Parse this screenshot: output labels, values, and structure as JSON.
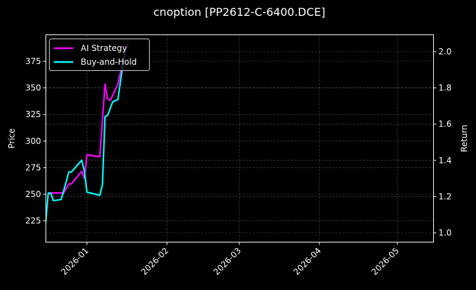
{
  "chart_data": {
    "type": "line",
    "title": "cnoption [PP2612-C-6400.DCE]",
    "xlabel": "",
    "ylabel": "Price",
    "y2label": "Return",
    "x_ticks": [
      "2026-01",
      "2026-02",
      "2026-03",
      "2026-04",
      "2026-05"
    ],
    "y_ticks": [
      225,
      250,
      275,
      300,
      325,
      350,
      375
    ],
    "y2_ticks": [
      1.0,
      1.2,
      1.4,
      1.6,
      1.8,
      2.0
    ],
    "ylim": [
      206,
      401
    ],
    "y2lim": [
      0.95,
      2.1
    ],
    "grid": true,
    "legend_position": "upper left",
    "series": [
      {
        "name": "AI Strategy",
        "color": "#ff00ff",
        "axis": "Return",
        "x": [
          "2025-12-17",
          "2025-12-23",
          "2025-12-25",
          "2025-12-26",
          "2025-12-30",
          "2025-12-31",
          "2026-01-01",
          "2026-01-06",
          "2026-01-08",
          "2026-01-09",
          "2026-01-10",
          "2026-01-13",
          "2026-01-15",
          "2026-01-17"
        ],
        "values": [
          1.22,
          1.22,
          1.27,
          1.27,
          1.34,
          1.3,
          1.43,
          1.42,
          1.82,
          1.74,
          1.73,
          1.82,
          1.95,
          2.05
        ]
      },
      {
        "name": "Buy-and-Hold",
        "color": "#00ffff",
        "axis": "Price",
        "x": [
          "2025-12-16",
          "2025-12-17",
          "2025-12-18",
          "2025-12-19",
          "2025-12-22",
          "2025-12-24",
          "2025-12-25",
          "2025-12-26",
          "2025-12-30",
          "2025-12-31",
          "2026-01-01",
          "2026-01-06",
          "2026-01-07",
          "2026-01-08",
          "2026-01-09",
          "2026-01-11",
          "2026-01-13",
          "2026-01-15",
          "2026-01-16"
        ],
        "values": [
          223,
          251,
          251,
          244,
          245,
          262,
          271,
          271,
          282,
          272,
          252,
          249,
          259,
          323,
          324,
          337,
          339,
          373,
          387
        ]
      }
    ]
  }
}
